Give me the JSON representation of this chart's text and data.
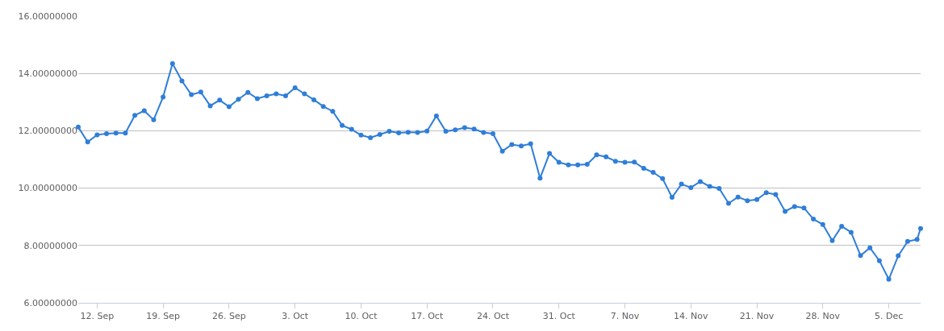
{
  "chart_data": {
    "type": "line",
    "marker": "circle",
    "line_style": "solid",
    "grid": "y",
    "x": [
      "--09-10",
      "--09-11",
      "--09-12",
      "--09-13",
      "--09-14",
      "--09-15",
      "--09-16",
      "--09-17",
      "--09-18",
      "--09-19",
      "--09-20",
      "--09-21",
      "--09-22",
      "--09-23",
      "--09-24",
      "--09-25",
      "--09-26",
      "--09-27",
      "--09-28",
      "--09-29",
      "--09-30",
      "--10-01",
      "--10-02",
      "--10-03",
      "--10-04",
      "--10-05",
      "--10-06",
      "--10-07",
      "--10-08",
      "--10-09",
      "--10-10",
      "--10-11",
      "--10-12",
      "--10-13",
      "--10-14",
      "--10-15",
      "--10-16",
      "--10-17",
      "--10-18",
      "--10-19",
      "--10-20",
      "--10-21",
      "--10-22",
      "--10-23",
      "--10-24",
      "--10-25",
      "--10-26",
      "--10-27",
      "--10-28",
      "--10-29",
      "--10-30",
      "--10-31",
      "--11-01",
      "--11-02",
      "--11-03",
      "--11-04",
      "--11-05",
      "--11-06",
      "--11-07",
      "--11-08",
      "--11-09",
      "--11-10",
      "--11-11",
      "--11-12",
      "--11-13",
      "--11-14",
      "--11-15",
      "--11-16",
      "--11-17",
      "--11-18",
      "--11-19",
      "--11-20",
      "--11-21",
      "--11-22",
      "--11-23",
      "--11-24",
      "--11-25",
      "--11-26",
      "--11-27",
      "--11-28",
      "--11-29",
      "--11-30",
      "--12-01",
      "--12-02",
      "--12-03",
      "--12-04",
      "--12-05",
      "--12-06",
      "--12-07",
      "--12-08",
      "--12-08T09:00"
    ],
    "series": [
      {
        "color": "#2f7ed8",
        "values": [
          12.13,
          11.61,
          11.86,
          11.9,
          11.92,
          11.92,
          12.54,
          12.7,
          12.38,
          13.18,
          14.34,
          13.74,
          13.26,
          13.35,
          12.87,
          13.07,
          12.84,
          13.1,
          13.34,
          13.12,
          13.22,
          13.29,
          13.22,
          13.5,
          13.29,
          13.08,
          12.85,
          12.68,
          12.19,
          12.05,
          11.85,
          11.76,
          11.87,
          11.98,
          11.93,
          11.95,
          11.94,
          11.99,
          12.52,
          11.98,
          12.03,
          12.11,
          12.06,
          11.94,
          11.9,
          11.29,
          11.52,
          11.47,
          11.55,
          10.35,
          11.21,
          10.9,
          10.81,
          10.81,
          10.83,
          11.16,
          11.09,
          10.94,
          10.9,
          10.91,
          10.69,
          10.55,
          10.33,
          9.68,
          10.14,
          10.02,
          10.23,
          10.06,
          9.99,
          9.47,
          9.69,
          9.56,
          9.6,
          9.84,
          9.78,
          9.19,
          9.36,
          9.31,
          8.92,
          8.73,
          8.17,
          8.67,
          8.46,
          7.65,
          7.92,
          7.47,
          6.82,
          7.64,
          8.14,
          8.21,
          8.59
        ]
      }
    ],
    "xlim": [
      "--09-10",
      "--12-08T09:00"
    ],
    "xticks": [
      {
        "value": "--09-12",
        "label": "12. Sep"
      },
      {
        "value": "--09-19",
        "label": "19. Sep"
      },
      {
        "value": "--09-26",
        "label": "26. Sep"
      },
      {
        "value": "--10-03",
        "label": "3. Oct"
      },
      {
        "value": "--10-10",
        "label": "10. Oct"
      },
      {
        "value": "--10-17",
        "label": "17. Oct"
      },
      {
        "value": "--10-24",
        "label": "24. Oct"
      },
      {
        "value": "--10-31",
        "label": "31. Oct"
      },
      {
        "value": "--11-07",
        "label": "7. Nov"
      },
      {
        "value": "--11-14",
        "label": "14. Nov"
      },
      {
        "value": "--11-21",
        "label": "21. Nov"
      },
      {
        "value": "--11-28",
        "label": "28. Nov"
      },
      {
        "value": "--12-05",
        "label": "5. Dec"
      }
    ],
    "ylim": [
      6,
      16
    ],
    "yticks": [
      {
        "value": 6,
        "label": "6.00000000"
      },
      {
        "value": 8,
        "label": "8.00000000"
      },
      {
        "value": 10,
        "label": "10.00000000"
      },
      {
        "value": 12,
        "label": "12.00000000"
      },
      {
        "value": 14,
        "label": "14.00000000"
      },
      {
        "value": 16,
        "label": "16.00000000"
      }
    ]
  }
}
